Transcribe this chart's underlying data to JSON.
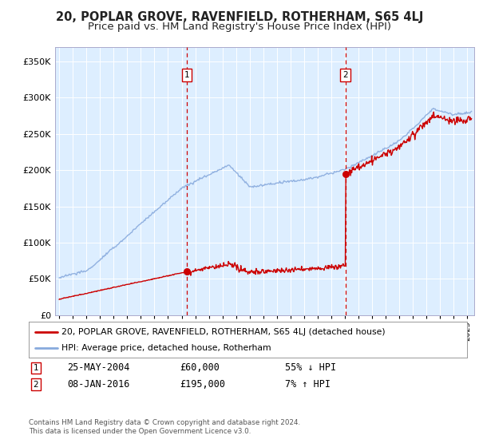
{
  "title": "20, POPLAR GROVE, RAVENFIELD, ROTHERHAM, S65 4LJ",
  "subtitle": "Price paid vs. HM Land Registry's House Price Index (HPI)",
  "title_fontsize": 10.5,
  "subtitle_fontsize": 9.5,
  "ylim": [
    0,
    370000
  ],
  "yticks": [
    0,
    50000,
    100000,
    150000,
    200000,
    250000,
    300000,
    350000
  ],
  "ytick_labels": [
    "£0",
    "£50K",
    "£100K",
    "£150K",
    "£200K",
    "£250K",
    "£300K",
    "£350K"
  ],
  "xlim_start": 1994.7,
  "xlim_end": 2025.5,
  "plot_bg_color": "#ddeeff",
  "grid_color": "#ccddee",
  "sale1_x": 2004.39,
  "sale1_y": 60000,
  "sale1_label": "1",
  "sale1_date": "25-MAY-2004",
  "sale1_price": "£60,000",
  "sale1_hpi": "55% ↓ HPI",
  "sale2_x": 2016.03,
  "sale2_y": 195000,
  "sale2_label": "2",
  "sale2_date": "08-JAN-2016",
  "sale2_price": "£195,000",
  "sale2_hpi": "7% ↑ HPI",
  "line_property_color": "#cc0000",
  "line_hpi_color": "#88aadd",
  "legend_property_label": "20, POPLAR GROVE, RAVENFIELD, ROTHERHAM, S65 4LJ (detached house)",
  "legend_hpi_label": "HPI: Average price, detached house, Rotherham",
  "footer": "Contains HM Land Registry data © Crown copyright and database right 2024.\nThis data is licensed under the Open Government Licence v3.0."
}
